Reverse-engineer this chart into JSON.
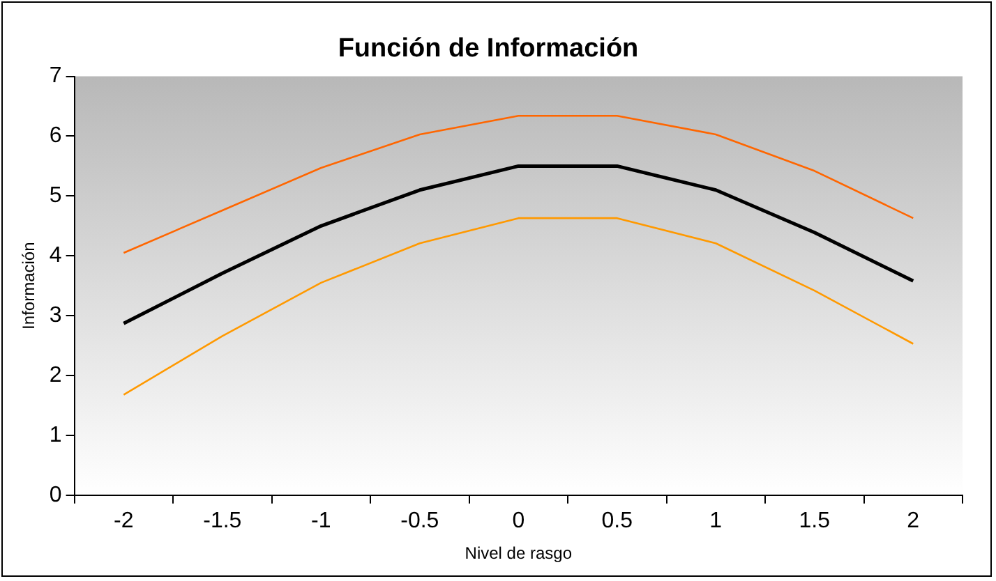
{
  "chart_data": {
    "type": "line",
    "title": "Función de Información",
    "xlabel": "Nivel de rasgo",
    "ylabel": "Información",
    "categories": [
      "-2",
      "-1.5",
      "-1",
      "-0.5",
      "0",
      "0.5",
      "1",
      "1.5",
      "2"
    ],
    "series": [
      {
        "color": "#ff6600",
        "values": [
          4.05,
          4.76,
          5.47,
          6.03,
          6.34,
          6.34,
          6.03,
          5.42,
          4.63
        ]
      },
      {
        "color": "#000000",
        "values": [
          2.87,
          3.71,
          4.5,
          5.1,
          5.5,
          5.5,
          5.1,
          4.39,
          3.58
        ]
      },
      {
        "color": "#ff9900",
        "values": [
          1.68,
          2.66,
          3.55,
          4.21,
          4.63,
          4.63,
          4.21,
          3.42,
          2.53
        ]
      }
    ],
    "ylim": [
      0,
      7
    ],
    "yticks": [
      0,
      1,
      2,
      3,
      4,
      5,
      6,
      7
    ],
    "grid": false,
    "legend": false,
    "marker": "none",
    "line_style": "solid"
  }
}
